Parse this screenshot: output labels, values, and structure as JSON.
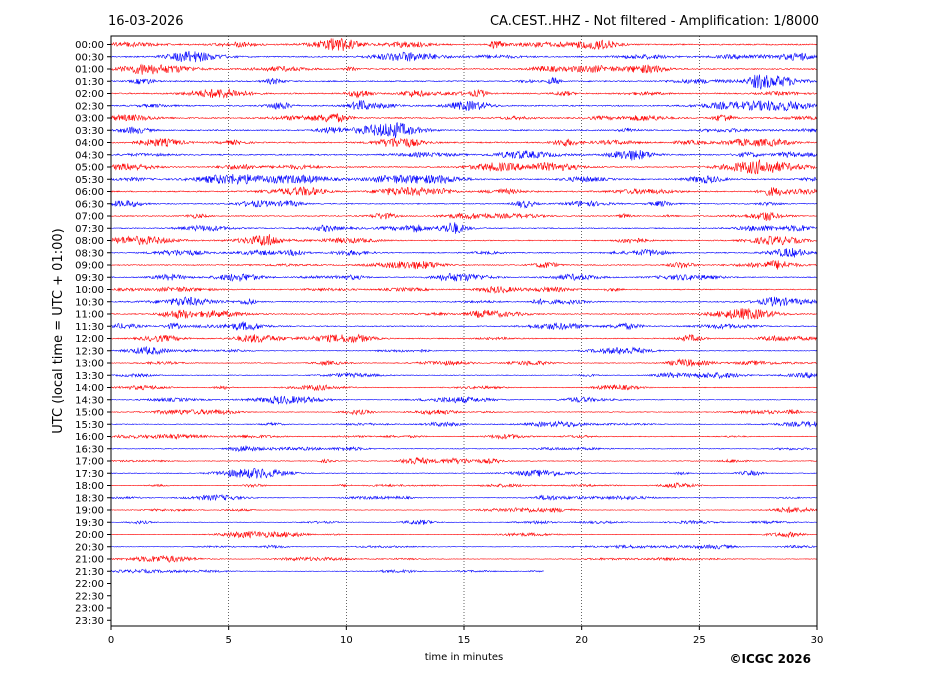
{
  "header": {
    "date": "16-03-2026",
    "title": "CA.CEST..HHZ - Not filtered - Amplification: 1/8000"
  },
  "footer": {
    "copyright": "©ICGC 2026"
  },
  "chart_data": {
    "type": "helicorder",
    "xlabel": "time in minutes",
    "ylabel": "UTC (local time = UTC + 01:00)",
    "xlim": [
      0,
      30
    ],
    "x_ticks": [
      0,
      5,
      10,
      15,
      20,
      25,
      30
    ],
    "x_grid": "dotted vertical at x ticks",
    "rows": [
      "00:00",
      "00:30",
      "01:00",
      "01:30",
      "02:00",
      "02:30",
      "03:00",
      "03:30",
      "04:00",
      "04:30",
      "05:00",
      "05:30",
      "06:00",
      "06:30",
      "07:00",
      "07:30",
      "08:00",
      "08:30",
      "09:00",
      "09:30",
      "10:00",
      "10:30",
      "11:00",
      "11:30",
      "12:00",
      "12:30",
      "13:00",
      "13:30",
      "14:00",
      "14:30",
      "15:00",
      "15:30",
      "16:00",
      "16:30",
      "17:00",
      "17:30",
      "18:00",
      "18:30",
      "19:00",
      "19:30",
      "20:00",
      "20:30",
      "21:00",
      "21:30",
      "22:00",
      "22:30",
      "23:00",
      "23:30"
    ],
    "trace_colors": [
      "#ff0000",
      "#0000ff"
    ],
    "last_row_end_minute": 18.4,
    "rows_with_data": 44
  }
}
